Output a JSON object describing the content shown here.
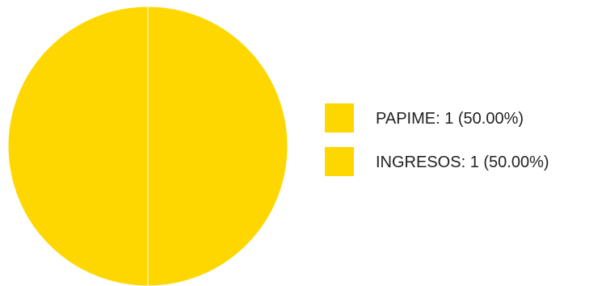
{
  "chart_data": {
    "type": "pie",
    "title": "",
    "legend_position": "right",
    "slices": [
      {
        "label": "PAPIME",
        "value": 1,
        "percent": 50.0,
        "color": "#FFD700"
      },
      {
        "label": "INGRESOS",
        "value": 1,
        "percent": 50.0,
        "color": "#FFD700"
      }
    ],
    "legend": [
      {
        "text": "PAPIME: 1 (50.00%)",
        "color": "#FFD700"
      },
      {
        "text": "INGRESOS: 1 (50.00%)",
        "color": "#FFD700"
      }
    ],
    "slice_border_color": "#FFFFFF"
  }
}
